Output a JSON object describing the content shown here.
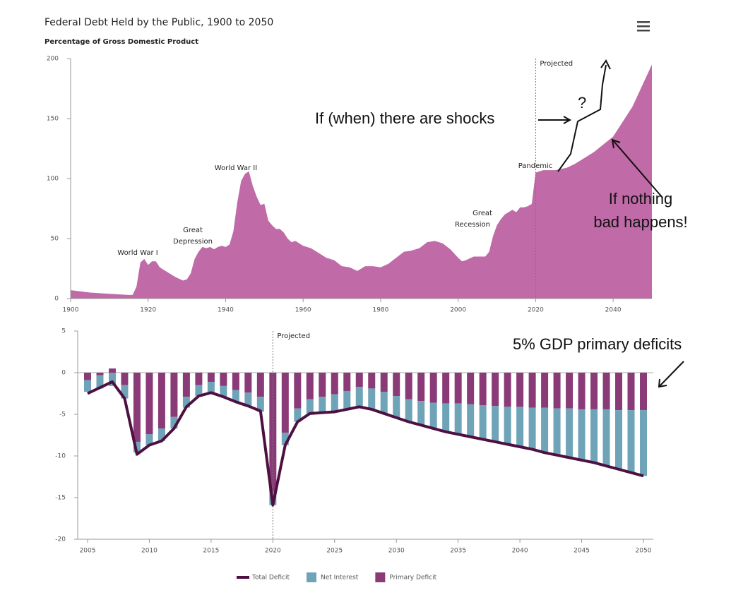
{
  "chart_data": [
    {
      "type": "area",
      "title": "Federal Debt Held by the Public, 1900 to 2050",
      "subtitle": "Percentage of Gross Domestic Product",
      "color": "#c06aa8",
      "x": [
        1900,
        1905,
        1910,
        1915,
        1916,
        1917,
        1918,
        1919,
        1920,
        1921,
        1922,
        1923,
        1925,
        1927,
        1929,
        1930,
        1931,
        1932,
        1933,
        1934,
        1935,
        1936,
        1937,
        1938,
        1939,
        1940,
        1941,
        1942,
        1943,
        1944,
        1945,
        1946,
        1947,
        1948,
        1949,
        1950,
        1951,
        1952,
        1953,
        1954,
        1955,
        1956,
        1957,
        1958,
        1959,
        1960,
        1962,
        1964,
        1966,
        1968,
        1970,
        1972,
        1974,
        1976,
        1978,
        1980,
        1982,
        1984,
        1986,
        1988,
        1990,
        1992,
        1994,
        1996,
        1998,
        2000,
        2001,
        2002,
        2004,
        2006,
        2007,
        2008,
        2009,
        2010,
        2011,
        2012,
        2013,
        2014,
        2015,
        2016,
        2017,
        2018,
        2019,
        2020,
        2021,
        2022,
        2025,
        2028,
        2030,
        2035,
        2040,
        2045,
        2050
      ],
      "values": [
        7,
        5,
        4,
        3,
        3,
        10,
        30,
        33,
        28,
        31,
        31,
        26,
        22,
        18,
        15,
        16,
        21,
        33,
        39,
        43,
        42,
        43,
        41,
        43,
        44,
        43,
        45,
        56,
        80,
        98,
        104,
        106,
        94,
        85,
        78,
        79,
        65,
        61,
        58,
        58,
        55,
        50,
        47,
        48,
        46,
        44,
        42,
        38,
        34,
        32,
        27,
        26,
        23,
        27,
        27,
        26,
        29,
        34,
        39,
        40,
        42,
        47,
        48,
        46,
        41,
        34,
        31,
        32,
        35,
        35,
        35,
        39,
        52,
        61,
        66,
        70,
        72,
        74,
        72,
        76,
        76,
        77,
        79,
        105,
        106,
        107,
        107,
        109,
        112,
        122,
        135,
        160,
        195
      ],
      "xlim": [
        1900,
        2050
      ],
      "ylim": [
        0,
        200
      ],
      "xticks": [
        1900,
        1920,
        1940,
        1960,
        1980,
        2000,
        2020,
        2040
      ],
      "yticks": [
        0,
        50,
        100,
        150,
        200
      ],
      "projection_start": 2020,
      "projection_label": "Projected",
      "annotations": [
        [
          "World War I"
        ],
        [
          "Great",
          "Depression"
        ],
        [
          "World War II"
        ],
        [
          "Great",
          "Recession"
        ],
        [
          "Pandemic"
        ]
      ]
    },
    {
      "type": "stacked-bar",
      "x": [
        2005,
        2006,
        2007,
        2008,
        2009,
        2010,
        2011,
        2012,
        2013,
        2014,
        2015,
        2016,
        2017,
        2018,
        2019,
        2020,
        2021,
        2022,
        2023,
        2024,
        2025,
        2026,
        2027,
        2028,
        2029,
        2030,
        2031,
        2032,
        2033,
        2034,
        2035,
        2036,
        2037,
        2038,
        2039,
        2040,
        2041,
        2042,
        2043,
        2044,
        2045,
        2046,
        2047,
        2048,
        2049,
        2050
      ],
      "series": [
        {
          "name": "Total Deficit",
          "kind": "line",
          "color": "#4d1040",
          "values": [
            -2.5,
            -1.8,
            -1.1,
            -3.1,
            -9.8,
            -8.7,
            -8.2,
            -6.7,
            -4.1,
            -2.8,
            -2.4,
            -2.9,
            -3.5,
            -4.0,
            -4.6,
            -15.9,
            -8.7,
            -5.9,
            -4.9,
            -4.8,
            -4.7,
            -4.4,
            -4.1,
            -4.4,
            -4.9,
            -5.4,
            -5.9,
            -6.3,
            -6.7,
            -7.1,
            -7.4,
            -7.7,
            -8.0,
            -8.3,
            -8.6,
            -8.9,
            -9.2,
            -9.6,
            -9.9,
            -10.2,
            -10.5,
            -10.8,
            -11.2,
            -11.6,
            -12.0,
            -12.4
          ]
        },
        {
          "name": "Net Interest",
          "kind": "bar",
          "color": "#6fa3b8",
          "values": [
            -1.4,
            -1.6,
            -1.6,
            -1.6,
            -1.3,
            -1.3,
            -1.5,
            -1.4,
            -1.3,
            -1.3,
            -1.3,
            -1.3,
            -1.4,
            -1.6,
            -1.8,
            -1.6,
            -1.5,
            -1.6,
            -1.7,
            -1.9,
            -2.1,
            -2.2,
            -2.4,
            -2.5,
            -2.6,
            -2.6,
            -2.7,
            -2.9,
            -3.1,
            -3.4,
            -3.7,
            -3.9,
            -4.1,
            -4.3,
            -4.5,
            -4.8,
            -5.0,
            -5.4,
            -5.6,
            -5.9,
            -6.1,
            -6.4,
            -6.8,
            -7.1,
            -7.5,
            -7.9
          ]
        },
        {
          "name": "Primary Deficit",
          "kind": "bar",
          "color": "#8b3a78",
          "values": [
            -0.9,
            -0.3,
            0.5,
            -1.5,
            -8.3,
            -7.4,
            -6.7,
            -5.3,
            -2.9,
            -1.5,
            -1.1,
            -1.6,
            -2.1,
            -2.4,
            -2.9,
            -14.3,
            -7.2,
            -4.3,
            -3.2,
            -2.9,
            -2.6,
            -2.2,
            -1.7,
            -1.9,
            -2.3,
            -2.8,
            -3.2,
            -3.4,
            -3.6,
            -3.7,
            -3.7,
            -3.8,
            -3.9,
            -4.0,
            -4.1,
            -4.1,
            -4.2,
            -4.2,
            -4.3,
            -4.3,
            -4.4,
            -4.4,
            -4.4,
            -4.5,
            -4.5,
            -4.5
          ]
        }
      ],
      "xlim": [
        2004.2,
        2050.8
      ],
      "ylim": [
        -20,
        5
      ],
      "xticks": [
        2005,
        2010,
        2015,
        2020,
        2025,
        2030,
        2035,
        2040,
        2045,
        2050
      ],
      "yticks": [
        -20,
        -15,
        -10,
        -5,
        0,
        5
      ],
      "projection_start": 2020,
      "projection_label": "Projected"
    }
  ],
  "overlay_notes": {
    "shocks": "If (when) there are shocks",
    "question": "?",
    "nothing_bad": [
      "If nothing",
      "bad happens!"
    ],
    "deficits": "5% GDP primary deficits"
  }
}
